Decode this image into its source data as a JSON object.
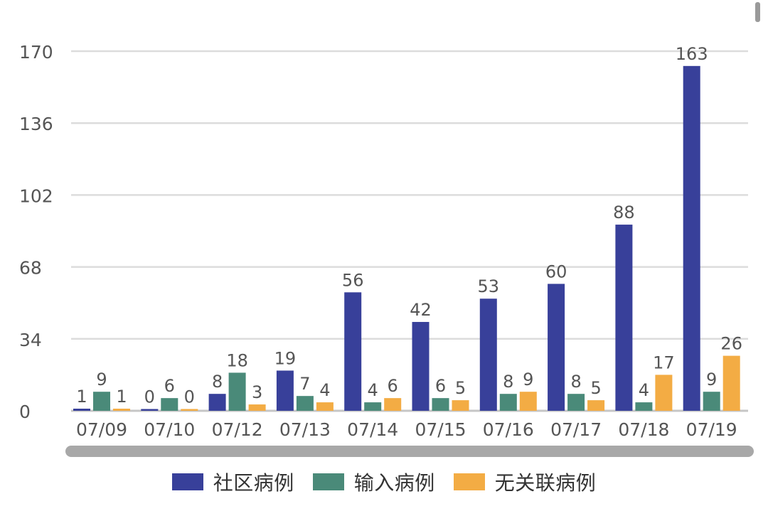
{
  "chart_data": {
    "type": "bar",
    "categories": [
      "07/09",
      "07/10",
      "07/12",
      "07/13",
      "07/14",
      "07/15",
      "07/16",
      "07/17",
      "07/18",
      "07/19"
    ],
    "series": [
      {
        "name": "社区病例",
        "color": "#38409a",
        "values": [
          1,
          0,
          8,
          19,
          56,
          42,
          53,
          60,
          88,
          163
        ]
      },
      {
        "name": "输入病例",
        "color": "#4a8a79",
        "values": [
          9,
          6,
          18,
          7,
          4,
          6,
          8,
          8,
          4,
          9
        ]
      },
      {
        "name": "无关联病例",
        "color": "#f3ac44",
        "values": [
          1,
          0,
          3,
          4,
          6,
          5,
          9,
          5,
          17,
          26
        ]
      }
    ],
    "yticks": [
      0,
      34,
      68,
      102,
      136,
      170
    ],
    "ylim": [
      0,
      170
    ],
    "grid": true,
    "legend_position": "bottom"
  }
}
